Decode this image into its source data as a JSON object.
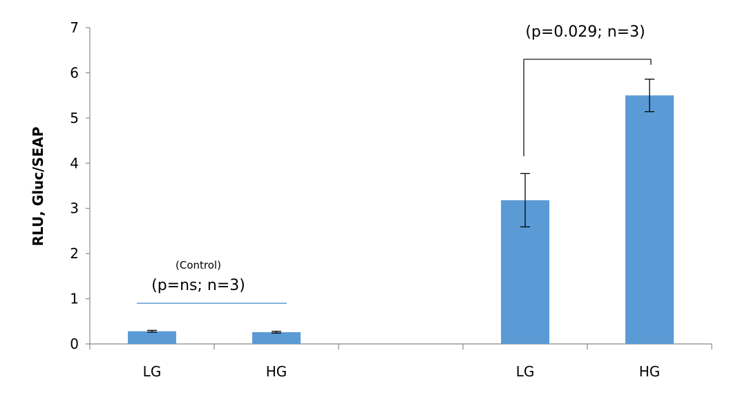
{
  "chart_data": {
    "type": "bar",
    "categories": [
      "LG",
      "HG",
      "",
      "LG",
      "HG"
    ],
    "values": [
      0.28,
      0.26,
      null,
      3.18,
      5.5
    ],
    "errors": [
      0.02,
      0.02,
      null,
      0.59,
      0.36
    ],
    "bar_color": "#5b9bd5",
    "title": "",
    "xlabel": "",
    "ylabel": "RLU, Gluc/SEAP",
    "ylim": [
      0,
      7
    ],
    "yticks": [
      "0",
      "1",
      "2",
      "3",
      "4",
      "5",
      "6",
      "7"
    ],
    "grid": false,
    "annotations": {
      "control_label": "(Control)",
      "control_stat": "(p=ns; n=3)",
      "treatment_stat": "(p=0.029; n=3)"
    },
    "brackets": [
      {
        "from_category": 0,
        "to_category": 1,
        "y": 0.9,
        "color": "#5b9bd5"
      },
      {
        "from_category": 3,
        "to_category": 4,
        "y": 6.3,
        "color": "#000000"
      }
    ]
  }
}
